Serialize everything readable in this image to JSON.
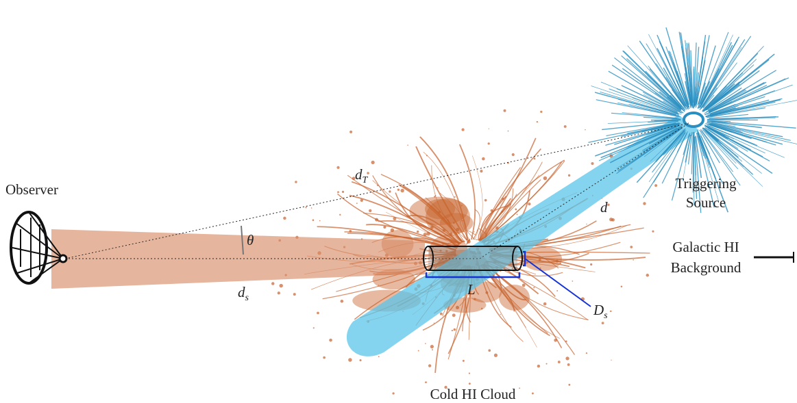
{
  "labels": {
    "observer": "Observer",
    "triggering_source": [
      "Triggering",
      "Source"
    ],
    "galactic_background": [
      "Galactic HI",
      "Background"
    ],
    "cold_cloud": "Cold HI Cloud",
    "d_T": {
      "symbol": "d",
      "subscript": "T"
    },
    "d": "d",
    "theta": "θ",
    "d_s": {
      "symbol": "d",
      "subscript": "s"
    },
    "L": "L",
    "D_s": {
      "symbol": "D",
      "subscript": "s"
    }
  }
}
